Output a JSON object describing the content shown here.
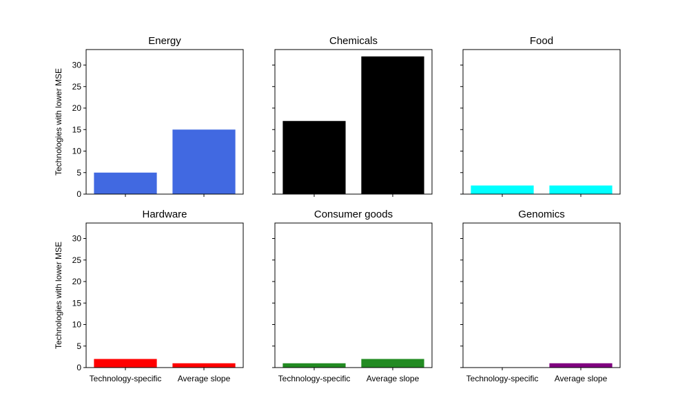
{
  "figure": {
    "ylabel": "Technologies with lower MSE",
    "categories": [
      "Technology-specific",
      "Average slope"
    ],
    "ylim": [
      0,
      33.6
    ],
    "yticks": [
      0,
      5,
      10,
      15,
      20,
      25,
      30
    ]
  },
  "chart_data": [
    {
      "type": "bar",
      "title": "Energy",
      "categories": [
        "Technology-specific",
        "Average slope"
      ],
      "values": [
        5,
        15
      ],
      "color": "#4169e1",
      "ylabel": "Technologies with lower MSE",
      "ylim": [
        0,
        33.6
      ]
    },
    {
      "type": "bar",
      "title": "Chemicals",
      "categories": [
        "Technology-specific",
        "Average slope"
      ],
      "values": [
        17,
        32
      ],
      "color": "#000000",
      "ylabel": "",
      "ylim": [
        0,
        33.6
      ]
    },
    {
      "type": "bar",
      "title": "Food",
      "categories": [
        "Technology-specific",
        "Average slope"
      ],
      "values": [
        2,
        2
      ],
      "color": "#00ffff",
      "ylabel": "",
      "ylim": [
        0,
        33.6
      ]
    },
    {
      "type": "bar",
      "title": "Hardware",
      "categories": [
        "Technology-specific",
        "Average slope"
      ],
      "values": [
        2,
        1
      ],
      "color": "#ff0000",
      "ylabel": "Technologies with lower MSE",
      "ylim": [
        0,
        33.6
      ]
    },
    {
      "type": "bar",
      "title": "Consumer goods",
      "categories": [
        "Technology-specific",
        "Average slope"
      ],
      "values": [
        1,
        2
      ],
      "color": "#228b22",
      "ylabel": "",
      "ylim": [
        0,
        33.6
      ]
    },
    {
      "type": "bar",
      "title": "Genomics",
      "categories": [
        "Technology-specific",
        "Average slope"
      ],
      "values": [
        0,
        1
      ],
      "color": "#800080",
      "ylabel": "",
      "ylim": [
        0,
        33.6
      ]
    }
  ]
}
